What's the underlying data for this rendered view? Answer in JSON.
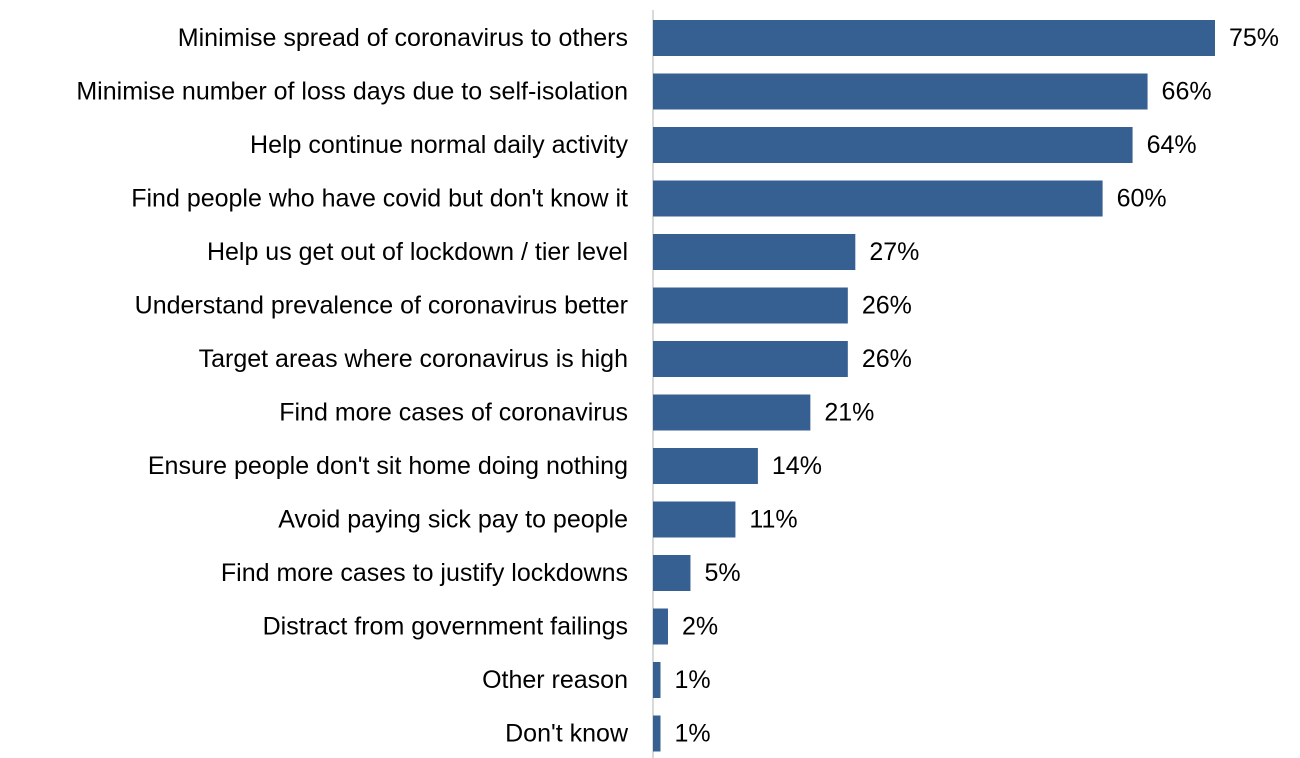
{
  "chart_data": {
    "type": "bar",
    "orientation": "horizontal",
    "categories": [
      "Minimise spread of coronavirus to others",
      "Minimise number of loss days due to self-isolation",
      "Help continue normal daily activity",
      "Find people who have covid but don't know it",
      "Help us get out of lockdown / tier level",
      "Understand prevalence of coronavirus better",
      "Target areas where coronavirus is high",
      "Find more cases of coronavirus",
      "Ensure people don't sit home doing nothing",
      "Avoid paying sick pay to people",
      "Find more cases to justify lockdowns",
      "Distract from government failings",
      "Other reason",
      "Don't know"
    ],
    "values": [
      75,
      66,
      64,
      60,
      27,
      26,
      26,
      21,
      14,
      11,
      5,
      2,
      1,
      1
    ],
    "value_labels": [
      "75%",
      "66%",
      "64%",
      "60%",
      "27%",
      "26%",
      "26%",
      "21%",
      "14%",
      "11%",
      "5%",
      "2%",
      "1%",
      "1%"
    ],
    "unit": "%",
    "title": "",
    "xlabel": "",
    "ylabel": "",
    "xlim": [
      0,
      75
    ],
    "grid": false,
    "legend": "none",
    "bar_color": "#376092",
    "axis_color": "#d9d9d9"
  }
}
